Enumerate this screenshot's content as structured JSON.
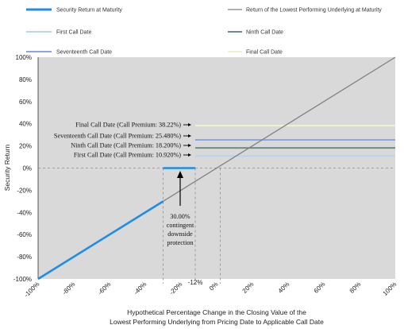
{
  "chart_data": {
    "type": "line",
    "xlabel_line1": "Hypothetical Percentage Change in the Closing Value of the",
    "xlabel_line2": "Lowest Performing Underlying from Pricing Date to Applicable Call Date",
    "ylabel": "Security Return",
    "xlim": [
      -100,
      100
    ],
    "ylim": [
      -100,
      100
    ],
    "x_ticks": [
      "-100%",
      "-80%",
      "-60%",
      "-40%",
      "-20%",
      "0%",
      "20%",
      "40%",
      "60%",
      "80%",
      "100%"
    ],
    "y_ticks": [
      "100%",
      "80%",
      "60%",
      "40%",
      "20%",
      "0%",
      "-20%",
      "-40%",
      "-60%",
      "-80%",
      "-100%"
    ],
    "series": [
      {
        "name": "Security Return at Maturity",
        "color": "#1f8ce8",
        "segments": [
          [
            [
              -100,
              -100
            ],
            [
              -30,
              -30
            ]
          ],
          [
            [
              -30,
              0
            ],
            [
              -12,
              0
            ]
          ]
        ]
      },
      {
        "name": "Return of the Lowest Performing Underlying at Maturity",
        "color": "#808080",
        "points": [
          [
            -100,
            -100
          ],
          [
            100,
            100
          ]
        ]
      },
      {
        "name": "First Call Date",
        "color": "#b8d4ee",
        "level": 10.92,
        "x_start": -12
      },
      {
        "name": "Ninth Call Date",
        "color": "#6d8c8c",
        "level": 18.2,
        "x_start": -12
      },
      {
        "name": "Seventeenth Call Date",
        "color": "#8aa6e6",
        "level": 25.48,
        "x_start": -12
      },
      {
        "name": "Final Call Date",
        "color": "#f0f0d2",
        "level": 38.22,
        "x_start": -12
      }
    ],
    "reference_lines": {
      "vertical_x": [
        -30,
        -12,
        2
      ],
      "horizontal_y": 0
    },
    "annotations": {
      "call_labels": [
        "Final Call Date (Call Premium: 38.22%)",
        "Seventeenth Call Date (Call Premium: 25.480%)",
        "Ninth Call Date (Call Premium: 18.200%)",
        "First Call Date (Call Premium: 10.920%)"
      ],
      "protection_lines": [
        "30.00%",
        "contingent",
        "downside",
        "protection"
      ],
      "marker_label": "-12%"
    },
    "legend_position": "top",
    "grid": false
  }
}
